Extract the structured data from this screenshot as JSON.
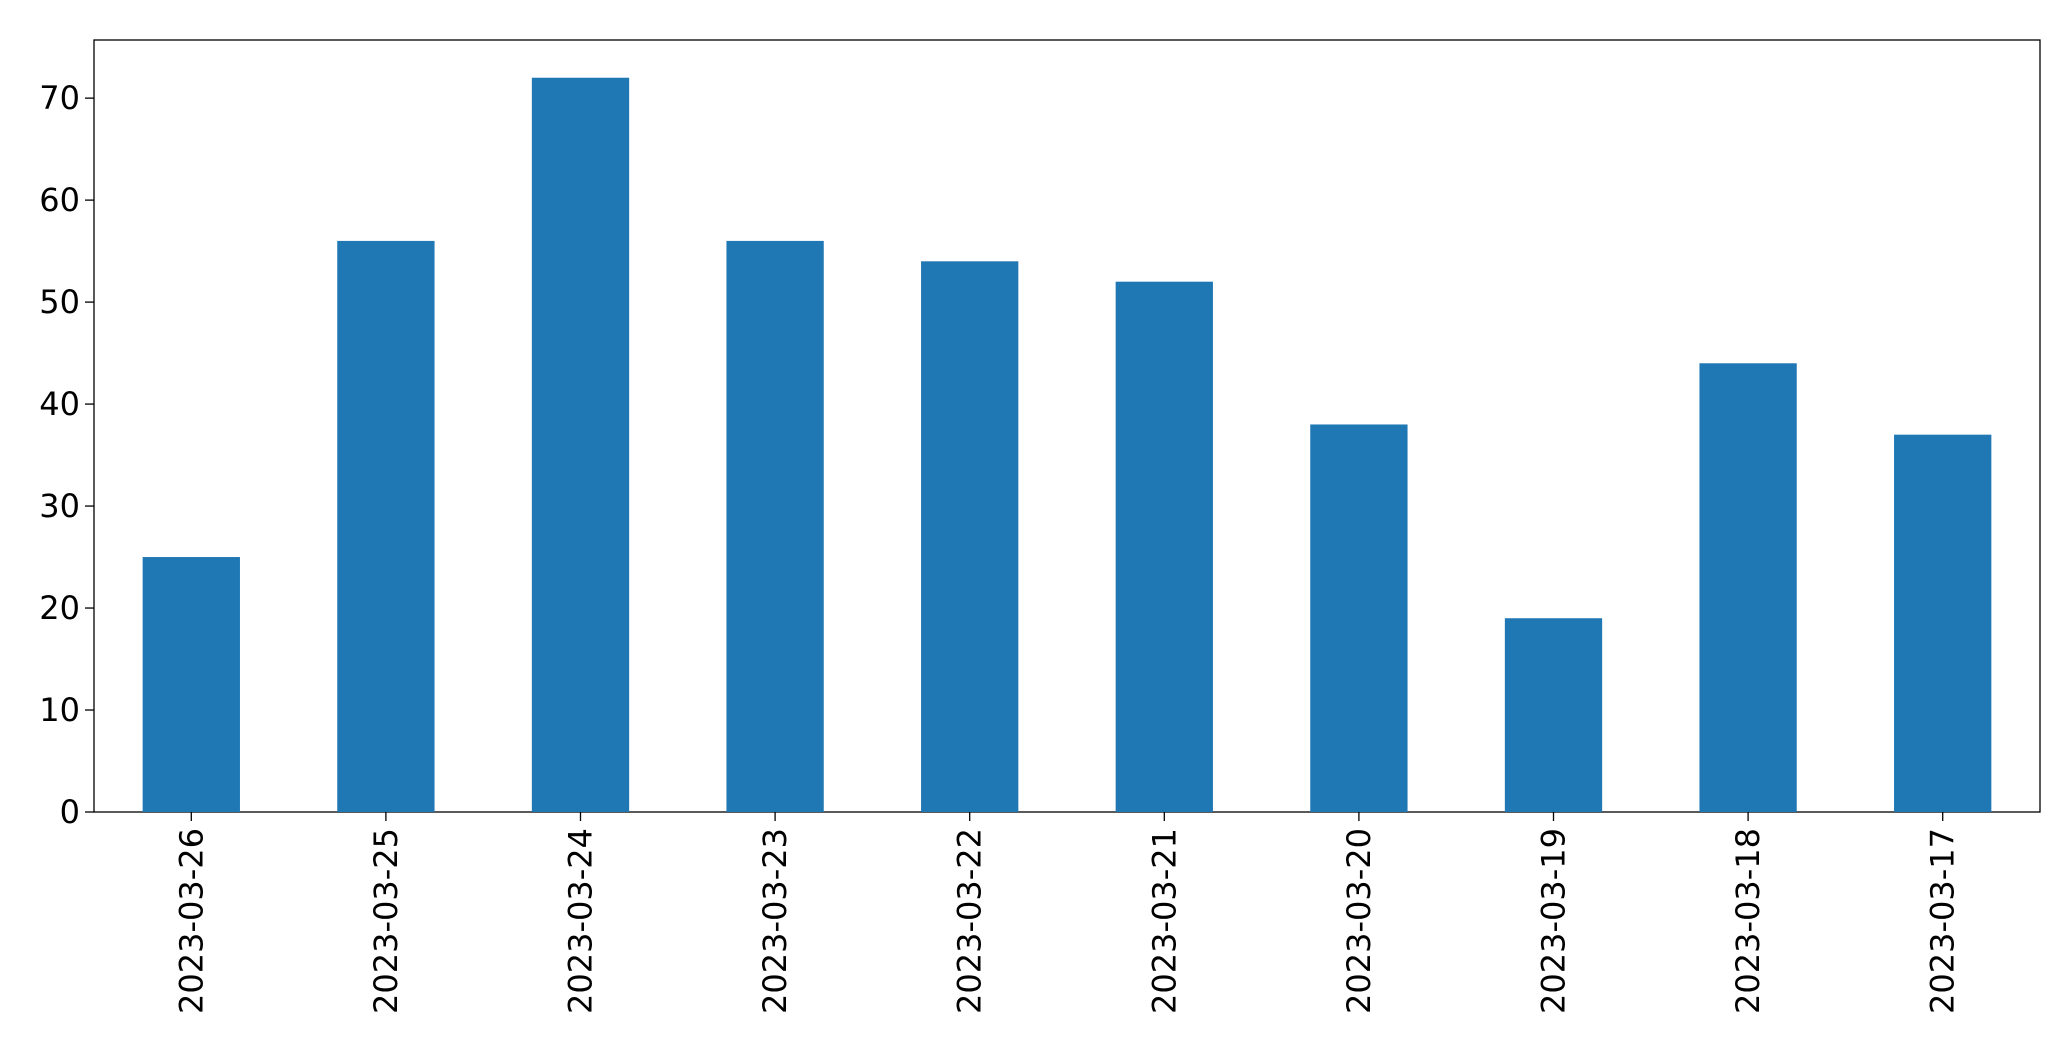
{
  "chart_data": {
    "type": "bar",
    "categories": [
      "2023-03-26",
      "2023-03-25",
      "2023-03-24",
      "2023-03-23",
      "2023-03-22",
      "2023-03-21",
      "2023-03-20",
      "2023-03-19",
      "2023-03-18",
      "2023-03-17"
    ],
    "values": [
      25,
      56,
      72,
      56,
      54,
      52,
      38,
      19,
      44,
      37
    ],
    "color": "#1f77b4",
    "ylim": [
      0,
      75.7
    ],
    "yticks": [
      0,
      10,
      20,
      30,
      40,
      50,
      60,
      70
    ],
    "grid": false
  }
}
